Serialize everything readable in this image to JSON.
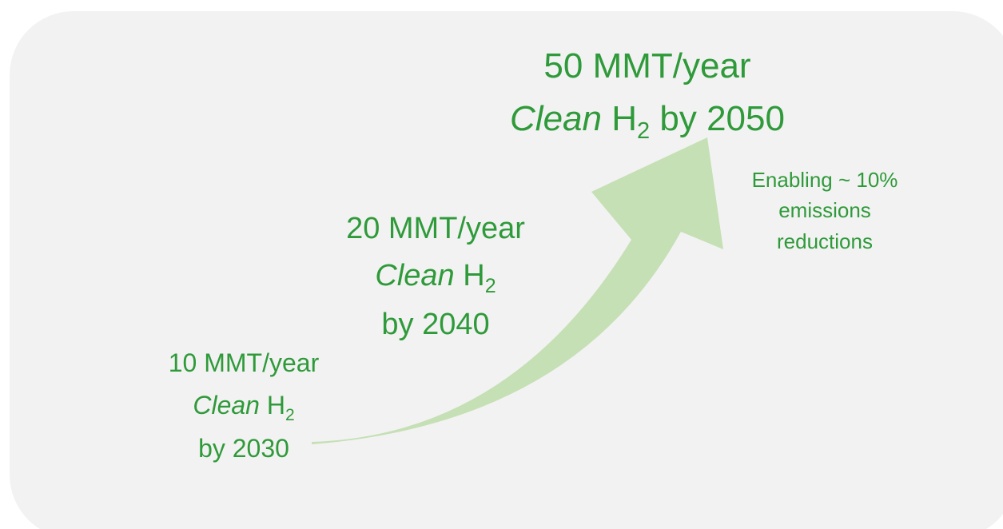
{
  "milestones": [
    {
      "amount": "10 MMT/year",
      "clean": "Clean",
      "h": "H",
      "sub": "2",
      "by": "by 2030"
    },
    {
      "amount": "20 MMT/year",
      "clean": "Clean",
      "h": "H",
      "sub": "2",
      "by": "by 2040"
    },
    {
      "amount": "50 MMT/year",
      "clean": "Clean",
      "h": "H",
      "sub": "2",
      "by": "by 2050"
    }
  ],
  "note": [
    "Enabling ~ 10%",
    "emissions",
    "reductions"
  ]
}
